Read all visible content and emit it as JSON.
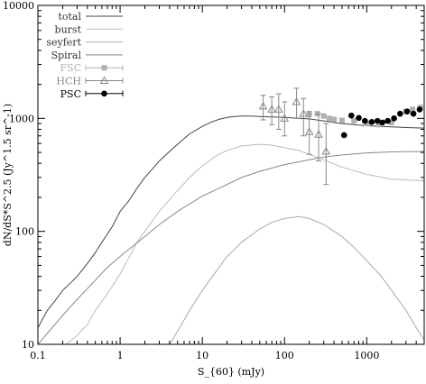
{
  "chart_data": {
    "type": "line",
    "title": "",
    "xlabel": "S_{60} (mJy)",
    "ylabel": "dN/dS*S^2.5 (Jy^1.5 sr^-1)",
    "xscale": "log",
    "yscale": "log",
    "xlim": [
      0.1,
      5000
    ],
    "ylim": [
      10,
      10000
    ],
    "grid": false,
    "legend_position": "top-left",
    "x_ticks": [
      {
        "value": 0.1,
        "label": "0.1"
      },
      {
        "value": 1,
        "label": "1"
      },
      {
        "value": 10,
        "label": "10"
      },
      {
        "value": 100,
        "label": "100"
      },
      {
        "value": 1000,
        "label": "1000"
      }
    ],
    "y_ticks": [
      {
        "value": 10,
        "label": "10"
      },
      {
        "value": 100,
        "label": "100"
      },
      {
        "value": 1000,
        "label": "1000"
      },
      {
        "value": 10000,
        "label": "10000"
      }
    ],
    "series": [
      {
        "name": "total",
        "kind": "line",
        "color": "#444444",
        "x": [
          0.1,
          0.13,
          0.16,
          0.2,
          0.26,
          0.3,
          0.4,
          0.5,
          0.6,
          0.7,
          0.8,
          1,
          1.3,
          1.6,
          2,
          2.5,
          3,
          4,
          5,
          7,
          10,
          13,
          16,
          20,
          25,
          30,
          40,
          50,
          70,
          100,
          150,
          200,
          300,
          400,
          500,
          700,
          1000,
          1500,
          2000,
          3000,
          5000
        ],
        "y": [
          14,
          20,
          24,
          30,
          36,
          40,
          52,
          65,
          80,
          95,
          110,
          150,
          190,
          240,
          300,
          360,
          420,
          510,
          590,
          730,
          850,
          930,
          980,
          1020,
          1040,
          1050,
          1050,
          1040,
          1030,
          1020,
          1000,
          990,
          950,
          920,
          900,
          880,
          860,
          850,
          840,
          830,
          820
        ]
      },
      {
        "name": "burst",
        "kind": "line",
        "color": "#bbbbbb",
        "x": [
          0.22,
          0.3,
          0.4,
          0.5,
          0.7,
          1,
          1.3,
          1.6,
          2,
          3,
          5,
          7,
          10,
          15,
          20,
          30,
          50,
          70,
          100,
          150,
          200,
          300,
          500,
          1000,
          2000,
          5000
        ],
        "y": [
          10,
          12,
          15,
          20,
          28,
          42,
          60,
          80,
          100,
          150,
          230,
          300,
          380,
          470,
          520,
          570,
          590,
          580,
          550,
          520,
          480,
          430,
          370,
          320,
          290,
          280
        ]
      },
      {
        "name": "seyfert",
        "kind": "line",
        "color": "#aaaaaa",
        "x": [
          4,
          5,
          7,
          10,
          15,
          20,
          30,
          50,
          70,
          100,
          150,
          200,
          300,
          500,
          700,
          1000,
          1500,
          2000,
          3000,
          4000,
          5000
        ],
        "y": [
          10,
          13,
          20,
          30,
          45,
          60,
          80,
          105,
          120,
          130,
          135,
          130,
          115,
          90,
          72,
          55,
          40,
          30,
          20,
          14,
          11
        ]
      },
      {
        "name": "Spiral",
        "kind": "line",
        "color": "#888888",
        "x": [
          0.1,
          0.2,
          0.3,
          0.5,
          0.7,
          1,
          2,
          3,
          5,
          7,
          10,
          20,
          30,
          50,
          100,
          200,
          300,
          500,
          1000,
          2000,
          5000
        ],
        "y": [
          10,
          18,
          25,
          37,
          48,
          60,
          90,
          115,
          150,
          175,
          205,
          260,
          300,
          340,
          390,
          430,
          455,
          475,
          495,
          505,
          510
        ]
      },
      {
        "name": "FSC",
        "kind": "points",
        "marker": "square",
        "color": "#b0b0b0",
        "x": [
          200,
          250,
          300,
          350,
          400,
          500,
          700,
          1000,
          1400,
          2000,
          3000,
          3600,
          4500
        ],
        "y": [
          1080,
          1100,
          1050,
          1000,
          980,
          960,
          950,
          900,
          880,
          920,
          1150,
          1200,
          1250
        ]
      },
      {
        "name": "HCH",
        "kind": "points",
        "marker": "triangle",
        "color": "#888888",
        "x": [
          55,
          70,
          85,
          100,
          140,
          170,
          200,
          260,
          320
        ],
        "y": [
          1280,
          1200,
          1200,
          1000,
          1400,
          1100,
          760,
          720,
          510
        ],
        "err_low": [
          970,
          880,
          800,
          700,
          1000,
          700,
          480,
          420,
          260
        ],
        "err_high": [
          1600,
          1550,
          1650,
          1400,
          1850,
          1500,
          1150,
          1100,
          900
        ]
      },
      {
        "name": "PSC",
        "kind": "points",
        "marker": "circle",
        "color": "#000000",
        "x": [
          530,
          650,
          800,
          950,
          1150,
          1350,
          1550,
          1800,
          2150,
          2550,
          3100,
          3700,
          4400
        ],
        "y": [
          710,
          1060,
          1010,
          950,
          930,
          950,
          920,
          950,
          1000,
          1100,
          1150,
          1100,
          1200
        ]
      }
    ]
  }
}
